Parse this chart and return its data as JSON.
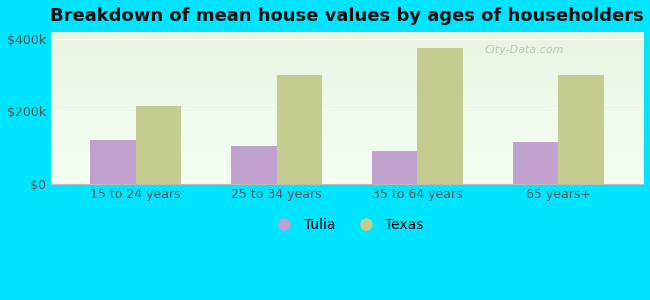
{
  "title": "Breakdown of mean house values by ages of householders",
  "categories": [
    "15 to 24 years",
    "25 to 34 years",
    "35 to 64 years",
    "65 years+"
  ],
  "tulia_values": [
    120000,
    105000,
    90000,
    115000
  ],
  "texas_values": [
    215000,
    300000,
    375000,
    300000
  ],
  "tulia_color": "#c0a0cc",
  "texas_color": "#c5cc90",
  "background_color": "#00e5ff",
  "plot_bg_topleft": "#e8f5e0",
  "plot_bg_bottomright": "#f8fff5",
  "ylim": [
    0,
    420000
  ],
  "ytick_vals": [
    0,
    200000,
    400000
  ],
  "ytick_labels": [
    "$0",
    "$200k",
    "$400k"
  ],
  "bar_width": 0.32,
  "legend_tulia": "Tulia",
  "legend_texas": "Texas",
  "watermark": "City-Data.com",
  "title_fontsize": 13,
  "tick_fontsize": 9
}
